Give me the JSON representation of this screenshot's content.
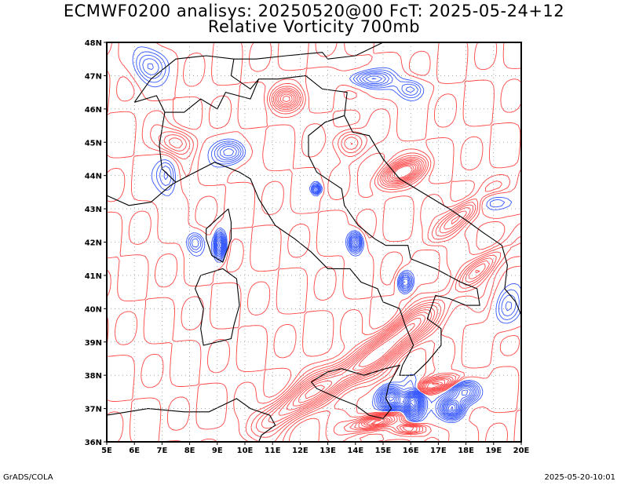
{
  "title_line1": "ECMWF0200 analisys: 20250520@00 FcT: 2025-05-24+12",
  "title_line2": "Relative Vorticity 700mb",
  "footer_left": "GrADS/COLA",
  "footer_right": "2025-05-20-10:01",
  "map": {
    "lon_range": [
      5,
      20
    ],
    "lat_range": [
      36,
      48
    ],
    "lon_ticks": [
      "5E",
      "6E",
      "7E",
      "8E",
      "9E",
      "10E",
      "11E",
      "12E",
      "13E",
      "14E",
      "15E",
      "16E",
      "17E",
      "18E",
      "19E",
      "20E"
    ],
    "lat_ticks": [
      "36N",
      "37N",
      "38N",
      "39N",
      "40N",
      "41N",
      "42N",
      "43N",
      "44N",
      "45N",
      "46N",
      "47N",
      "48N"
    ],
    "colors": {
      "positive_vorticity": "#3355ff",
      "negative_vorticity": "#ff4444",
      "coastline": "#000000",
      "grid": "#999999"
    }
  }
}
